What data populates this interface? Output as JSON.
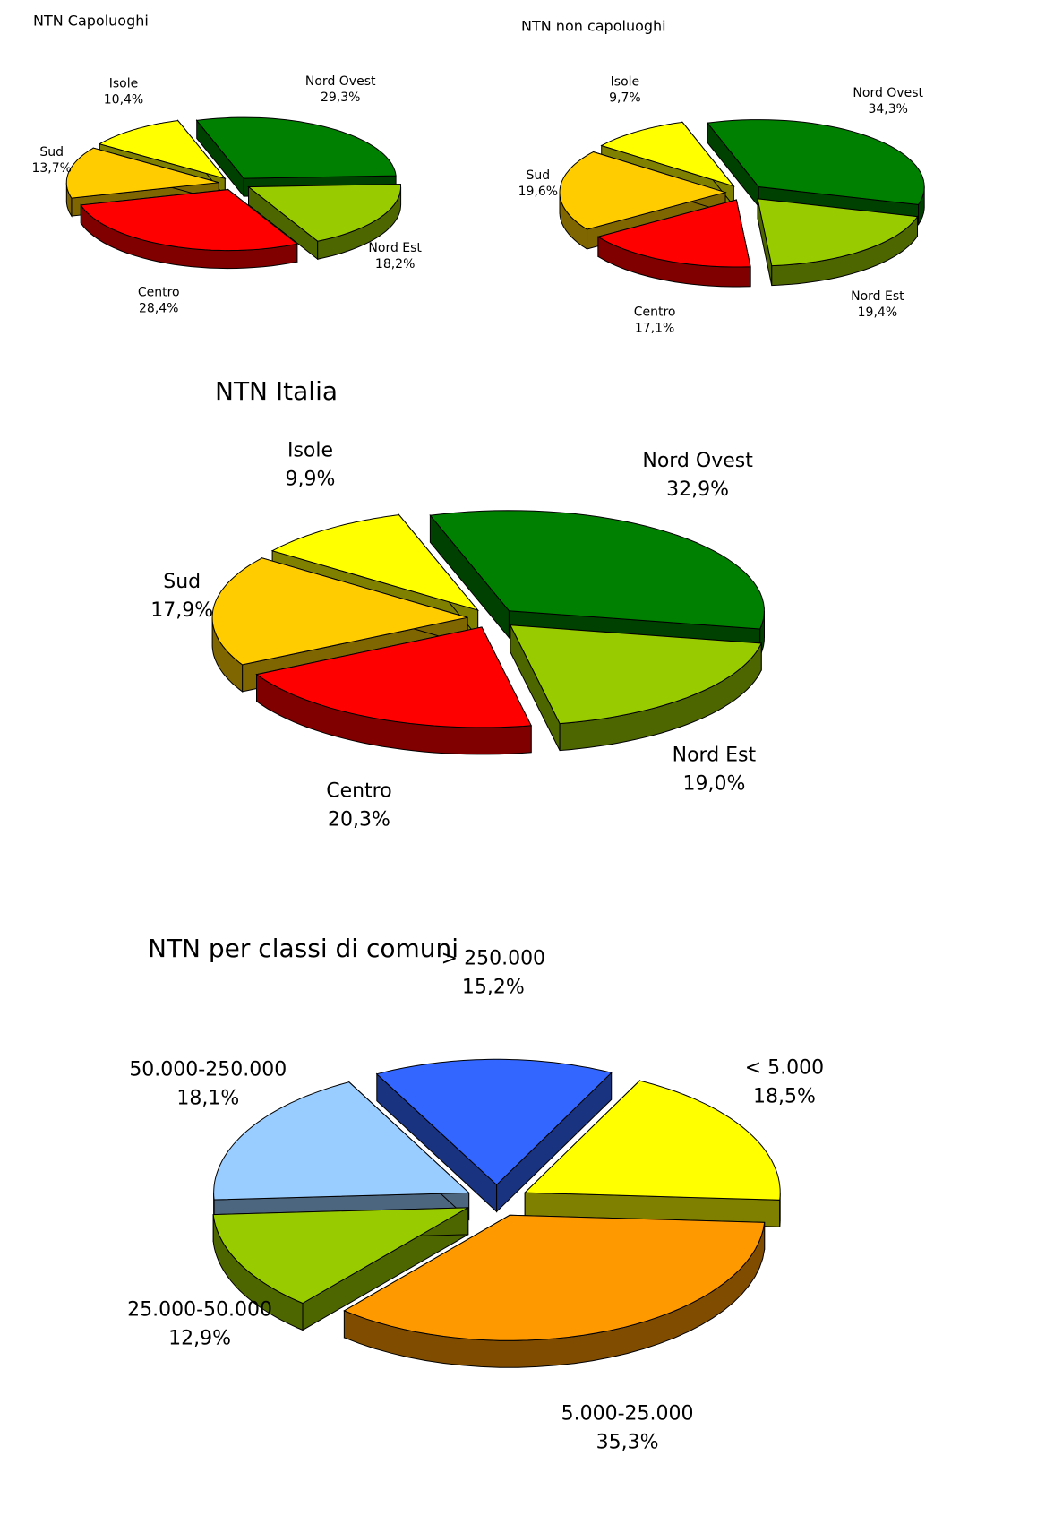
{
  "chart_data": [
    {
      "type": "pie3d",
      "title": "NTN Capoluoghi",
      "categories": [
        "Nord Ovest",
        "Nord Est",
        "Centro",
        "Sud",
        "Isole"
      ],
      "values": [
        29.3,
        18.2,
        28.4,
        13.7,
        10.4
      ],
      "value_labels": [
        "29,3%",
        "18,2%",
        "28,4%",
        "13,7%",
        "10,4%"
      ],
      "colors": [
        "#008000",
        "#99cc00",
        "#ff0000",
        "#ffcc00",
        "#ffff00"
      ]
    },
    {
      "type": "pie3d",
      "title": "NTN non capoluoghi",
      "categories": [
        "Nord Ovest",
        "Nord Est",
        "Centro",
        "Sud",
        "Isole"
      ],
      "values": [
        34.3,
        19.4,
        17.1,
        19.6,
        9.7
      ],
      "value_labels": [
        "34,3%",
        "19,4%",
        "17,1%",
        "19,6%",
        "9,7%"
      ],
      "colors": [
        "#008000",
        "#99cc00",
        "#ff0000",
        "#ffcc00",
        "#ffff00"
      ]
    },
    {
      "type": "pie3d",
      "title": "NTN Italia",
      "categories": [
        "Nord Ovest",
        "Nord Est",
        "Centro",
        "Sud",
        "Isole"
      ],
      "values": [
        32.9,
        19.0,
        20.3,
        17.9,
        9.9
      ],
      "value_labels": [
        "32,9%",
        "19,0%",
        "20,3%",
        "17,9%",
        "9,9%"
      ],
      "colors": [
        "#008000",
        "#99cc00",
        "#ff0000",
        "#ffcc00",
        "#ffff00"
      ]
    },
    {
      "type": "pie3d",
      "title": "NTN per classi di comuni",
      "categories": [
        "> 250.000",
        "< 5.000",
        "5.000-25.000",
        "25.000-50.000",
        "50.000-250.000"
      ],
      "values": [
        15.2,
        18.5,
        35.3,
        12.9,
        18.1
      ],
      "value_labels": [
        "15,2%",
        "18,5%",
        "35,3%",
        "12,9%",
        "18,1%"
      ],
      "colors": [
        "#3366ff",
        "#ffff00",
        "#ff9900",
        "#99cc00",
        "#99ccff"
      ]
    }
  ]
}
